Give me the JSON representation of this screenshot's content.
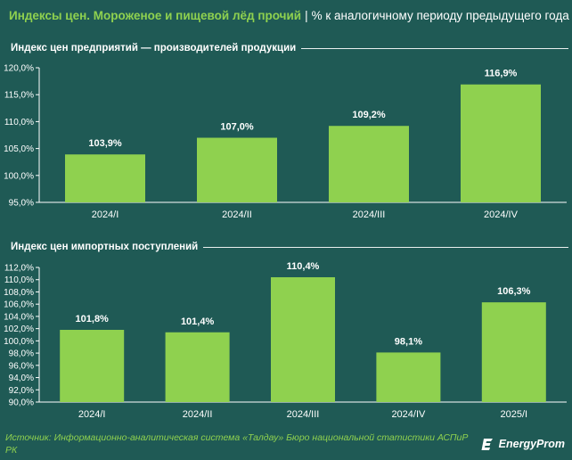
{
  "header": {
    "title": "Индексы цен. Мороженое и пищевой лёд прочий",
    "separator": "|",
    "subtitle": "% к аналогичному периоду предыдущего года"
  },
  "footer": {
    "source": "Источник: Информационно-аналитическая система «Талдау» Бюро национальной статистики АСПиР РК",
    "brand": "EnergyProm"
  },
  "colors": {
    "background": "#1f5a55",
    "bar": "#8fd14f",
    "accent_text": "#8fd14f"
  },
  "chart_data": [
    {
      "type": "bar",
      "title": "Индекс цен предприятий — производителей продукции",
      "categories": [
        "2024/I",
        "2024/II",
        "2024/III",
        "2024/IV"
      ],
      "values": [
        103.9,
        107.0,
        109.2,
        116.9
      ],
      "value_labels": [
        "103,9%",
        "107,0%",
        "109,2%",
        "116,9%"
      ],
      "ylim": [
        95,
        120
      ],
      "yticks": [
        95,
        100,
        105,
        110,
        115,
        120
      ],
      "ytick_labels": [
        "95,0%",
        "100,0%",
        "105,0%",
        "110,0%",
        "115,0%",
        "120,0%"
      ],
      "grid": false
    },
    {
      "type": "bar",
      "title": "Индекс цен импортных поступлений",
      "categories": [
        "2024/I",
        "2024/II",
        "2024/III",
        "2024/IV",
        "2025/I"
      ],
      "values": [
        101.8,
        101.4,
        110.4,
        98.1,
        106.3
      ],
      "value_labels": [
        "101,8%",
        "101,4%",
        "110,4%",
        "98,1%",
        "106,3%"
      ],
      "ylim": [
        90,
        112
      ],
      "yticks": [
        90,
        92,
        94,
        96,
        98,
        100,
        102,
        104,
        106,
        108,
        110,
        112
      ],
      "ytick_labels": [
        "90,0%",
        "92,0%",
        "94,0%",
        "96,0%",
        "98,0%",
        "100,0%",
        "102,0%",
        "104,0%",
        "106,0%",
        "108,0%",
        "110,0%",
        "112,0%"
      ],
      "grid": false
    }
  ]
}
